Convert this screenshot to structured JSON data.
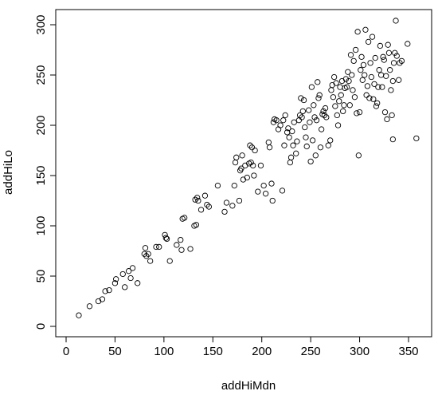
{
  "chart_data": {
    "type": "scatter",
    "title": "",
    "xlabel": "addHiMdn",
    "ylabel": "addHiLo",
    "xlim": [
      0,
      360
    ],
    "ylim": [
      0,
      305
    ],
    "xticks": [
      0,
      50,
      100,
      150,
      200,
      250,
      300,
      350
    ],
    "yticks": [
      0,
      50,
      100,
      150,
      200,
      250,
      300
    ],
    "xtick_labels": [
      "0",
      "50",
      "100",
      "150",
      "200",
      "250",
      "300",
      "350"
    ],
    "ytick_labels": [
      "0",
      "50",
      "100",
      "150",
      "200",
      "250",
      "300"
    ],
    "marker": "open-circle",
    "grid": false,
    "points": [
      [
        13,
        11
      ],
      [
        24,
        20
      ],
      [
        33,
        25
      ],
      [
        37,
        27
      ],
      [
        40,
        35
      ],
      [
        44,
        36
      ],
      [
        50,
        43
      ],
      [
        51,
        47
      ],
      [
        58,
        52
      ],
      [
        60,
        39
      ],
      [
        64,
        55
      ],
      [
        66,
        48
      ],
      [
        68,
        58
      ],
      [
        73,
        43
      ],
      [
        80,
        72
      ],
      [
        81,
        78
      ],
      [
        82,
        70
      ],
      [
        84,
        72
      ],
      [
        86,
        65
      ],
      [
        92,
        79
      ],
      [
        95,
        79
      ],
      [
        101,
        91
      ],
      [
        102,
        88
      ],
      [
        103,
        87
      ],
      [
        106,
        65
      ],
      [
        113,
        81
      ],
      [
        117,
        86
      ],
      [
        118,
        76
      ],
      [
        119,
        107
      ],
      [
        121,
        108
      ],
      [
        127,
        77
      ],
      [
        131,
        100
      ],
      [
        132,
        126
      ],
      [
        133,
        101
      ],
      [
        134,
        128
      ],
      [
        135,
        125
      ],
      [
        138,
        116
      ],
      [
        142,
        130
      ],
      [
        144,
        121
      ],
      [
        146,
        119
      ],
      [
        155,
        140
      ],
      [
        162,
        114
      ],
      [
        164,
        123
      ],
      [
        170,
        120
      ],
      [
        172,
        140
      ],
      [
        173,
        163
      ],
      [
        174,
        168
      ],
      [
        177,
        125
      ],
      [
        178,
        155
      ],
      [
        179,
        157
      ],
      [
        181,
        146
      ],
      [
        180,
        170
      ],
      [
        183,
        160
      ],
      [
        185,
        148
      ],
      [
        187,
        162
      ],
      [
        188,
        180
      ],
      [
        189,
        163
      ],
      [
        190,
        178
      ],
      [
        191,
        160
      ],
      [
        193,
        175
      ],
      [
        192,
        150
      ],
      [
        196,
        134
      ],
      [
        199,
        160
      ],
      [
        202,
        140
      ],
      [
        204,
        132
      ],
      [
        207,
        183
      ],
      [
        208,
        178
      ],
      [
        210,
        142
      ],
      [
        211,
        125
      ],
      [
        212,
        203
      ],
      [
        213,
        206
      ],
      [
        215,
        205
      ],
      [
        217,
        196
      ],
      [
        219,
        200
      ],
      [
        221,
        135
      ],
      [
        222,
        205
      ],
      [
        223,
        180
      ],
      [
        224,
        210
      ],
      [
        226,
        193
      ],
      [
        227,
        197
      ],
      [
        228,
        188
      ],
      [
        229,
        163
      ],
      [
        230,
        168
      ],
      [
        231,
        194
      ],
      [
        232,
        180
      ],
      [
        233,
        203
      ],
      [
        235,
        172
      ],
      [
        236,
        184
      ],
      [
        238,
        205
      ],
      [
        239,
        210
      ],
      [
        240,
        227
      ],
      [
        241,
        208
      ],
      [
        242,
        214
      ],
      [
        243,
        225
      ],
      [
        244,
        198
      ],
      [
        245,
        188
      ],
      [
        246,
        179
      ],
      [
        248,
        215
      ],
      [
        249,
        203
      ],
      [
        250,
        164
      ],
      [
        251,
        238
      ],
      [
        252,
        185
      ],
      [
        253,
        220
      ],
      [
        254,
        208
      ],
      [
        255,
        170
      ],
      [
        256,
        205
      ],
      [
        257,
        243
      ],
      [
        258,
        227
      ],
      [
        259,
        230
      ],
      [
        260,
        178
      ],
      [
        261,
        196
      ],
      [
        262,
        211
      ],
      [
        263,
        214
      ],
      [
        264,
        210
      ],
      [
        265,
        217
      ],
      [
        266,
        208
      ],
      [
        268,
        180
      ],
      [
        270,
        185
      ],
      [
        271,
        235
      ],
      [
        272,
        240
      ],
      [
        273,
        228
      ],
      [
        274,
        248
      ],
      [
        275,
        219
      ],
      [
        276,
        242
      ],
      [
        277,
        210
      ],
      [
        278,
        200
      ],
      [
        279,
        224
      ],
      [
        280,
        238
      ],
      [
        281,
        230
      ],
      [
        282,
        244
      ],
      [
        283,
        214
      ],
      [
        284,
        220
      ],
      [
        285,
        237
      ],
      [
        286,
        246
      ],
      [
        287,
        238
      ],
      [
        288,
        253
      ],
      [
        289,
        244
      ],
      [
        290,
        220
      ],
      [
        291,
        270
      ],
      [
        292,
        250
      ],
      [
        293,
        235
      ],
      [
        294,
        264
      ],
      [
        295,
        228
      ],
      [
        296,
        275
      ],
      [
        297,
        212
      ],
      [
        298,
        293
      ],
      [
        299,
        170
      ],
      [
        300,
        213
      ],
      [
        301,
        255
      ],
      [
        302,
        268
      ],
      [
        303,
        245
      ],
      [
        304,
        260
      ],
      [
        305,
        250
      ],
      [
        306,
        295
      ],
      [
        307,
        230
      ],
      [
        308,
        239
      ],
      [
        309,
        283
      ],
      [
        310,
        227
      ],
      [
        311,
        262
      ],
      [
        312,
        248
      ],
      [
        313,
        288
      ],
      [
        314,
        226
      ],
      [
        315,
        241
      ],
      [
        316,
        267
      ],
      [
        317,
        219
      ],
      [
        318,
        222
      ],
      [
        319,
        238
      ],
      [
        320,
        255
      ],
      [
        321,
        279
      ],
      [
        322,
        250
      ],
      [
        323,
        238
      ],
      [
        324,
        268
      ],
      [
        325,
        265
      ],
      [
        326,
        213
      ],
      [
        327,
        249
      ],
      [
        328,
        206
      ],
      [
        329,
        280
      ],
      [
        330,
        272
      ],
      [
        331,
        255
      ],
      [
        332,
        235
      ],
      [
        333,
        210
      ],
      [
        334,
        186
      ],
      [
        334,
        244
      ],
      [
        335,
        262
      ],
      [
        336,
        272
      ],
      [
        337,
        304
      ],
      [
        338,
        269
      ],
      [
        340,
        245
      ],
      [
        341,
        262
      ],
      [
        343,
        264
      ],
      [
        349,
        281
      ],
      [
        358,
        187
      ]
    ]
  }
}
